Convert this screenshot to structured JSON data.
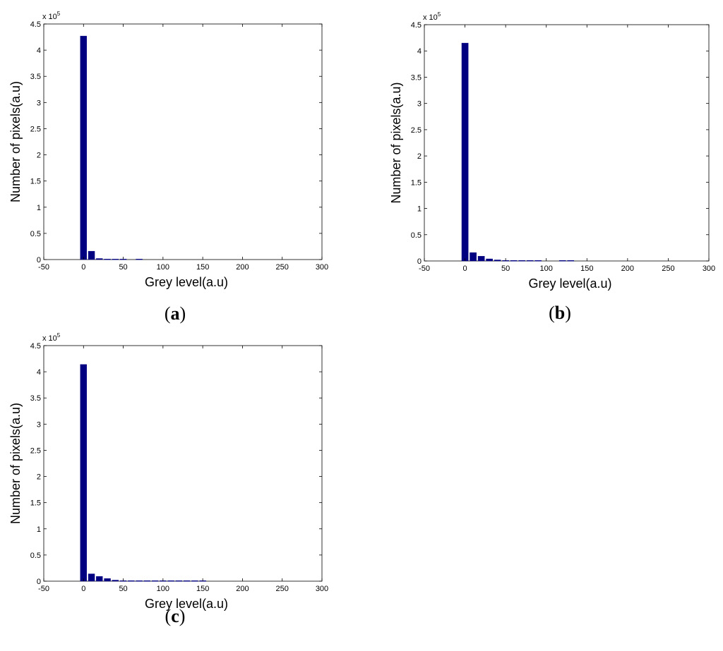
{
  "chart_data": [
    {
      "panel": "a",
      "type": "bar",
      "xlabel": "Grey level(a.u)",
      "ylabel": "Number of pixels(a.u)",
      "y_multiplier_label": "x 10",
      "y_multiplier_exponent": "5",
      "xlim": [
        -50,
        300
      ],
      "ylim": [
        0,
        4.5
      ],
      "xticks": [
        "-50",
        "0",
        "50",
        "100",
        "150",
        "200",
        "250",
        "300"
      ],
      "yticks": [
        "0",
        "0.5",
        "1",
        "1.5",
        "2",
        "2.5",
        "3",
        "3.5",
        "4",
        "4.5"
      ],
      "bar_color": "#000080",
      "bar_width": 8,
      "x": [
        0,
        10,
        20,
        30,
        40,
        50,
        70
      ],
      "values": [
        4.27,
        0.16,
        0.02,
        0.01,
        0.01,
        0.01,
        0.01
      ]
    },
    {
      "panel": "b",
      "type": "bar",
      "xlabel": "Grey level(a.u)",
      "ylabel": "Number of pixels(a.u)",
      "y_multiplier_label": "x 10",
      "y_multiplier_exponent": "5",
      "xlim": [
        -50,
        300
      ],
      "ylim": [
        0,
        4.5
      ],
      "xticks": [
        "-50",
        "0",
        "50",
        "100",
        "150",
        "200",
        "250",
        "300"
      ],
      "yticks": [
        "0",
        "0.5",
        "1",
        "1.5",
        "2",
        "2.5",
        "3",
        "3.5",
        "4",
        "4.5"
      ],
      "bar_color": "#000080",
      "bar_width": 8,
      "x": [
        0,
        10,
        20,
        30,
        40,
        50,
        60,
        70,
        80,
        90,
        120,
        130
      ],
      "values": [
        4.15,
        0.16,
        0.09,
        0.04,
        0.02,
        0.01,
        0.01,
        0.01,
        0.01,
        0.01,
        0.01,
        0.01
      ]
    },
    {
      "panel": "c",
      "type": "bar",
      "xlabel": "Grey level(a.u)",
      "ylabel": "Number of pixels(a.u)",
      "y_multiplier_label": "x 10",
      "y_multiplier_exponent": "5",
      "xlim": [
        -50,
        300
      ],
      "ylim": [
        0,
        4.5
      ],
      "xticks": [
        "-50",
        "0",
        "50",
        "100",
        "150",
        "200",
        "250",
        "300"
      ],
      "yticks": [
        "0",
        "0.5",
        "1",
        "1.5",
        "2",
        "2.5",
        "3",
        "3.5",
        "4",
        "4.5"
      ],
      "bar_color": "#000080",
      "bar_width": 8,
      "x": [
        0,
        10,
        20,
        30,
        40,
        50,
        60,
        70,
        80,
        90,
        100,
        110,
        120,
        130,
        140,
        150
      ],
      "values": [
        4.14,
        0.14,
        0.09,
        0.05,
        0.02,
        0.01,
        0.01,
        0.01,
        0.01,
        0.01,
        0.01,
        0.01,
        0.01,
        0.01,
        0.01,
        0.01
      ]
    }
  ],
  "captions": [
    {
      "open": "(",
      "letter": "a",
      "close": ")"
    },
    {
      "open": "(",
      "letter": "b",
      "close": ")"
    },
    {
      "open": "(",
      "letter": "c",
      "close": ")"
    }
  ]
}
